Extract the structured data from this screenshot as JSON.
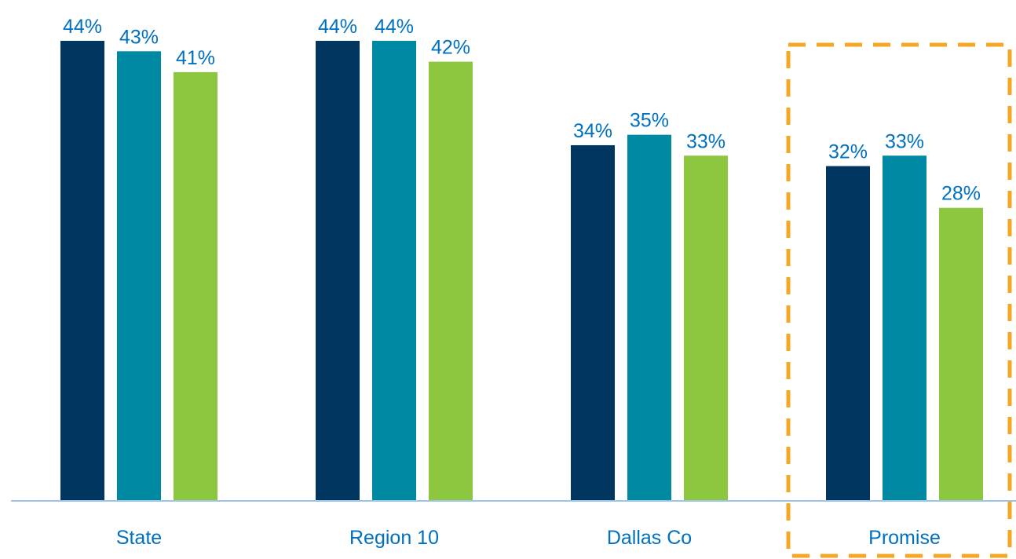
{
  "colors": {
    "series": [
      "#00365f",
      "#0089a2",
      "#8dc63f"
    ],
    "label_text": "#0070c0",
    "axis_line": "#9dc3e6",
    "highlight_box": "#f5a623"
  },
  "chart_data": {
    "type": "bar",
    "categories": [
      "State",
      "Region 10",
      "Dallas Co",
      "Promise"
    ],
    "series": [
      {
        "values": [
          44,
          44,
          34,
          32
        ]
      },
      {
        "values": [
          43,
          44,
          35,
          33
        ]
      },
      {
        "values": [
          41,
          42,
          33,
          28
        ]
      }
    ],
    "value_labels": [
      [
        "44%",
        "44%",
        "34%",
        "32%"
      ],
      [
        "43%",
        "44%",
        "35%",
        "33%"
      ],
      [
        "41%",
        "42%",
        "33%",
        "28%"
      ]
    ],
    "ylim": [
      0,
      44
    ],
    "grid": false,
    "legend": "none",
    "highlighted_category": "Promise",
    "highlight_style": "dashed orange box"
  }
}
